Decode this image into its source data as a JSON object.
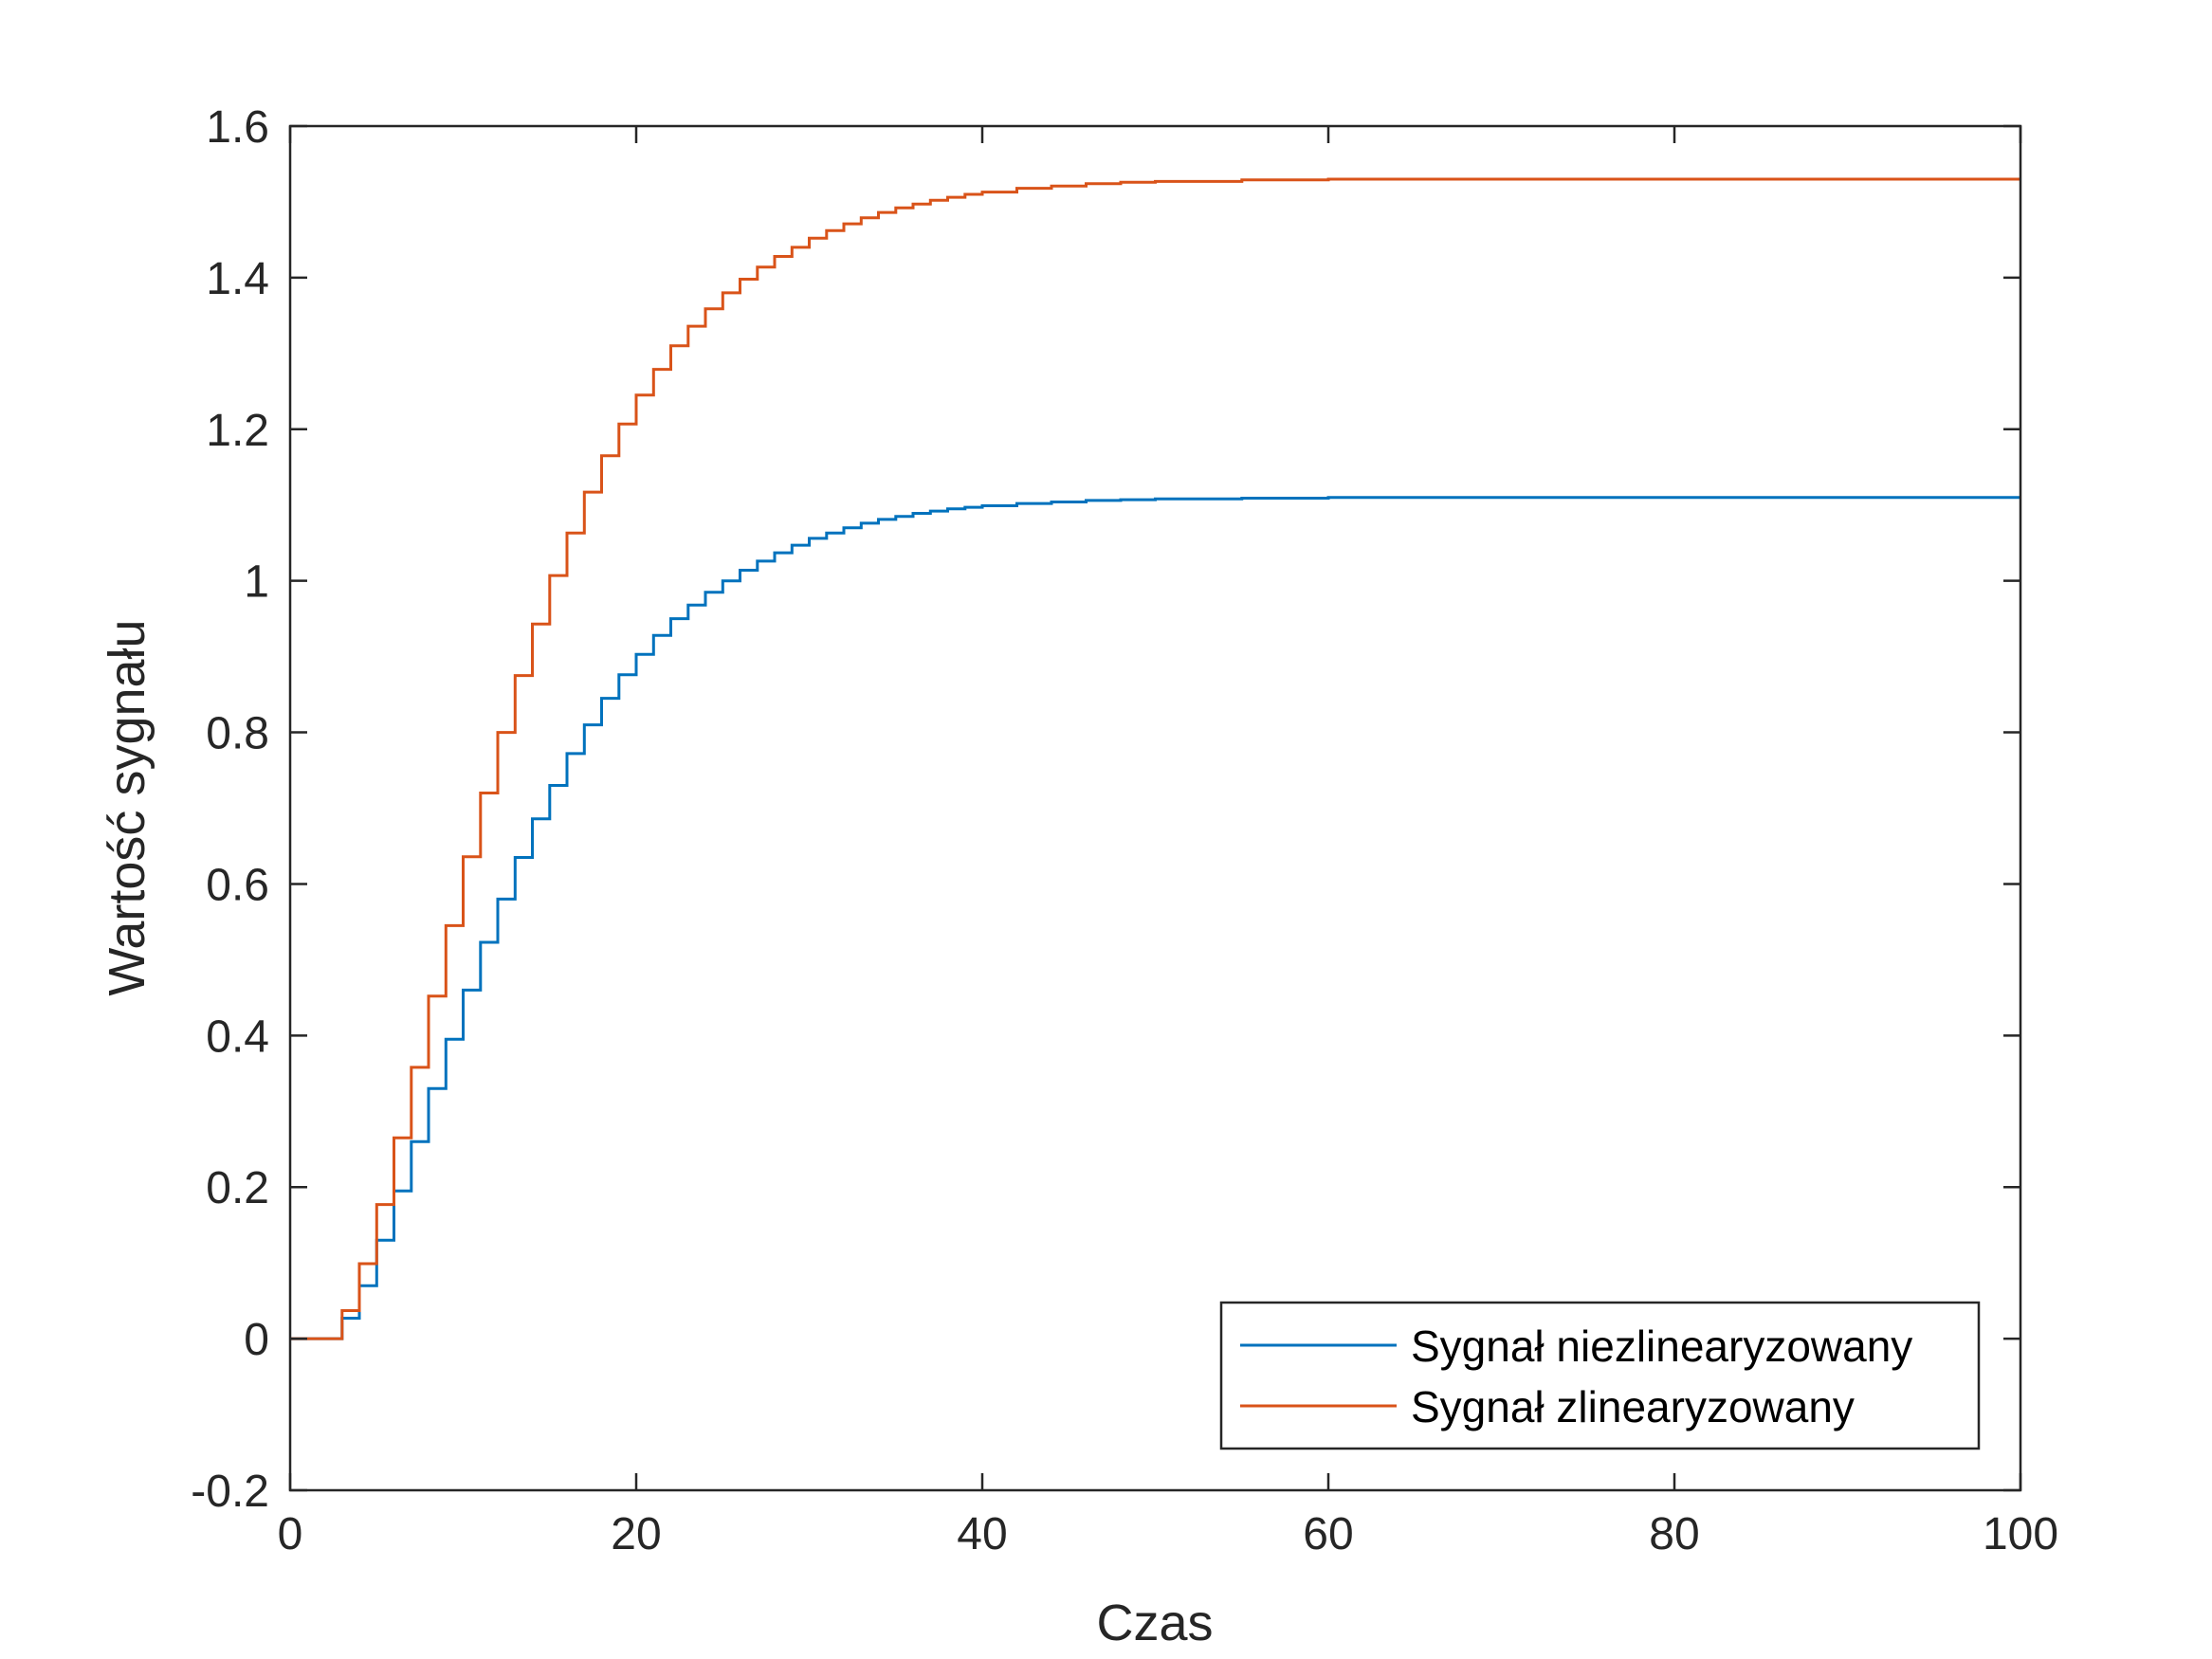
{
  "chart_data": {
    "type": "line",
    "title": "",
    "xlabel": "Czas",
    "ylabel": "Wartość sygnału",
    "xlim": [
      0,
      100
    ],
    "ylim": [
      -0.2,
      1.6
    ],
    "x_ticks": [
      0,
      20,
      40,
      60,
      80,
      100
    ],
    "x_tick_labels": [
      "0",
      "20",
      "40",
      "60",
      "80",
      "100"
    ],
    "y_ticks": [
      -0.2,
      0,
      0.2,
      0.4,
      0.6,
      0.8,
      1,
      1.2,
      1.4,
      1.6
    ],
    "y_tick_labels": [
      "-0.2",
      "0",
      "0.2",
      "0.4",
      "0.6",
      "0.8",
      "1",
      "1.2",
      "1.4",
      "1.6"
    ],
    "grid": false,
    "legend_position": "bottom-right",
    "step_style": "stairs",
    "series": [
      {
        "name": "Sygnał niezlinearyzowany",
        "color": "#0072BD",
        "x": [
          0,
          3,
          4,
          5,
          6,
          7,
          8,
          9,
          10,
          11,
          12,
          13,
          14,
          15,
          16,
          17,
          18,
          19,
          20,
          21,
          22,
          23,
          24,
          25,
          26,
          27,
          28,
          29,
          30,
          31,
          32,
          33,
          34,
          35,
          36,
          37,
          38,
          39,
          40,
          42,
          44,
          46,
          48,
          50,
          55,
          60,
          100
        ],
        "y": [
          0,
          0.027,
          0.07,
          0.13,
          0.195,
          0.26,
          0.33,
          0.395,
          0.46,
          0.523,
          0.58,
          0.635,
          0.686,
          0.73,
          0.772,
          0.81,
          0.845,
          0.876,
          0.903,
          0.928,
          0.95,
          0.968,
          0.985,
          1.0,
          1.014,
          1.026,
          1.037,
          1.047,
          1.056,
          1.063,
          1.07,
          1.076,
          1.081,
          1.085,
          1.089,
          1.092,
          1.095,
          1.097,
          1.099,
          1.102,
          1.104,
          1.106,
          1.107,
          1.108,
          1.109,
          1.11,
          1.11
        ]
      },
      {
        "name": "Sygnał zlinearyzowany",
        "color": "#D95319",
        "x": [
          0,
          3,
          4,
          5,
          6,
          7,
          8,
          9,
          10,
          11,
          12,
          13,
          14,
          15,
          16,
          17,
          18,
          19,
          20,
          21,
          22,
          23,
          24,
          25,
          26,
          27,
          28,
          29,
          30,
          31,
          32,
          33,
          34,
          35,
          36,
          37,
          38,
          39,
          40,
          42,
          44,
          46,
          48,
          50,
          55,
          60,
          100
        ],
        "y": [
          0,
          0.037,
          0.099,
          0.177,
          0.265,
          0.358,
          0.452,
          0.545,
          0.636,
          0.72,
          0.8,
          0.875,
          0.943,
          1.007,
          1.063,
          1.117,
          1.165,
          1.207,
          1.245,
          1.279,
          1.31,
          1.336,
          1.359,
          1.38,
          1.398,
          1.414,
          1.428,
          1.44,
          1.452,
          1.462,
          1.471,
          1.479,
          1.486,
          1.492,
          1.497,
          1.502,
          1.506,
          1.51,
          1.513,
          1.518,
          1.521,
          1.524,
          1.526,
          1.527,
          1.529,
          1.53,
          1.53
        ]
      }
    ]
  }
}
